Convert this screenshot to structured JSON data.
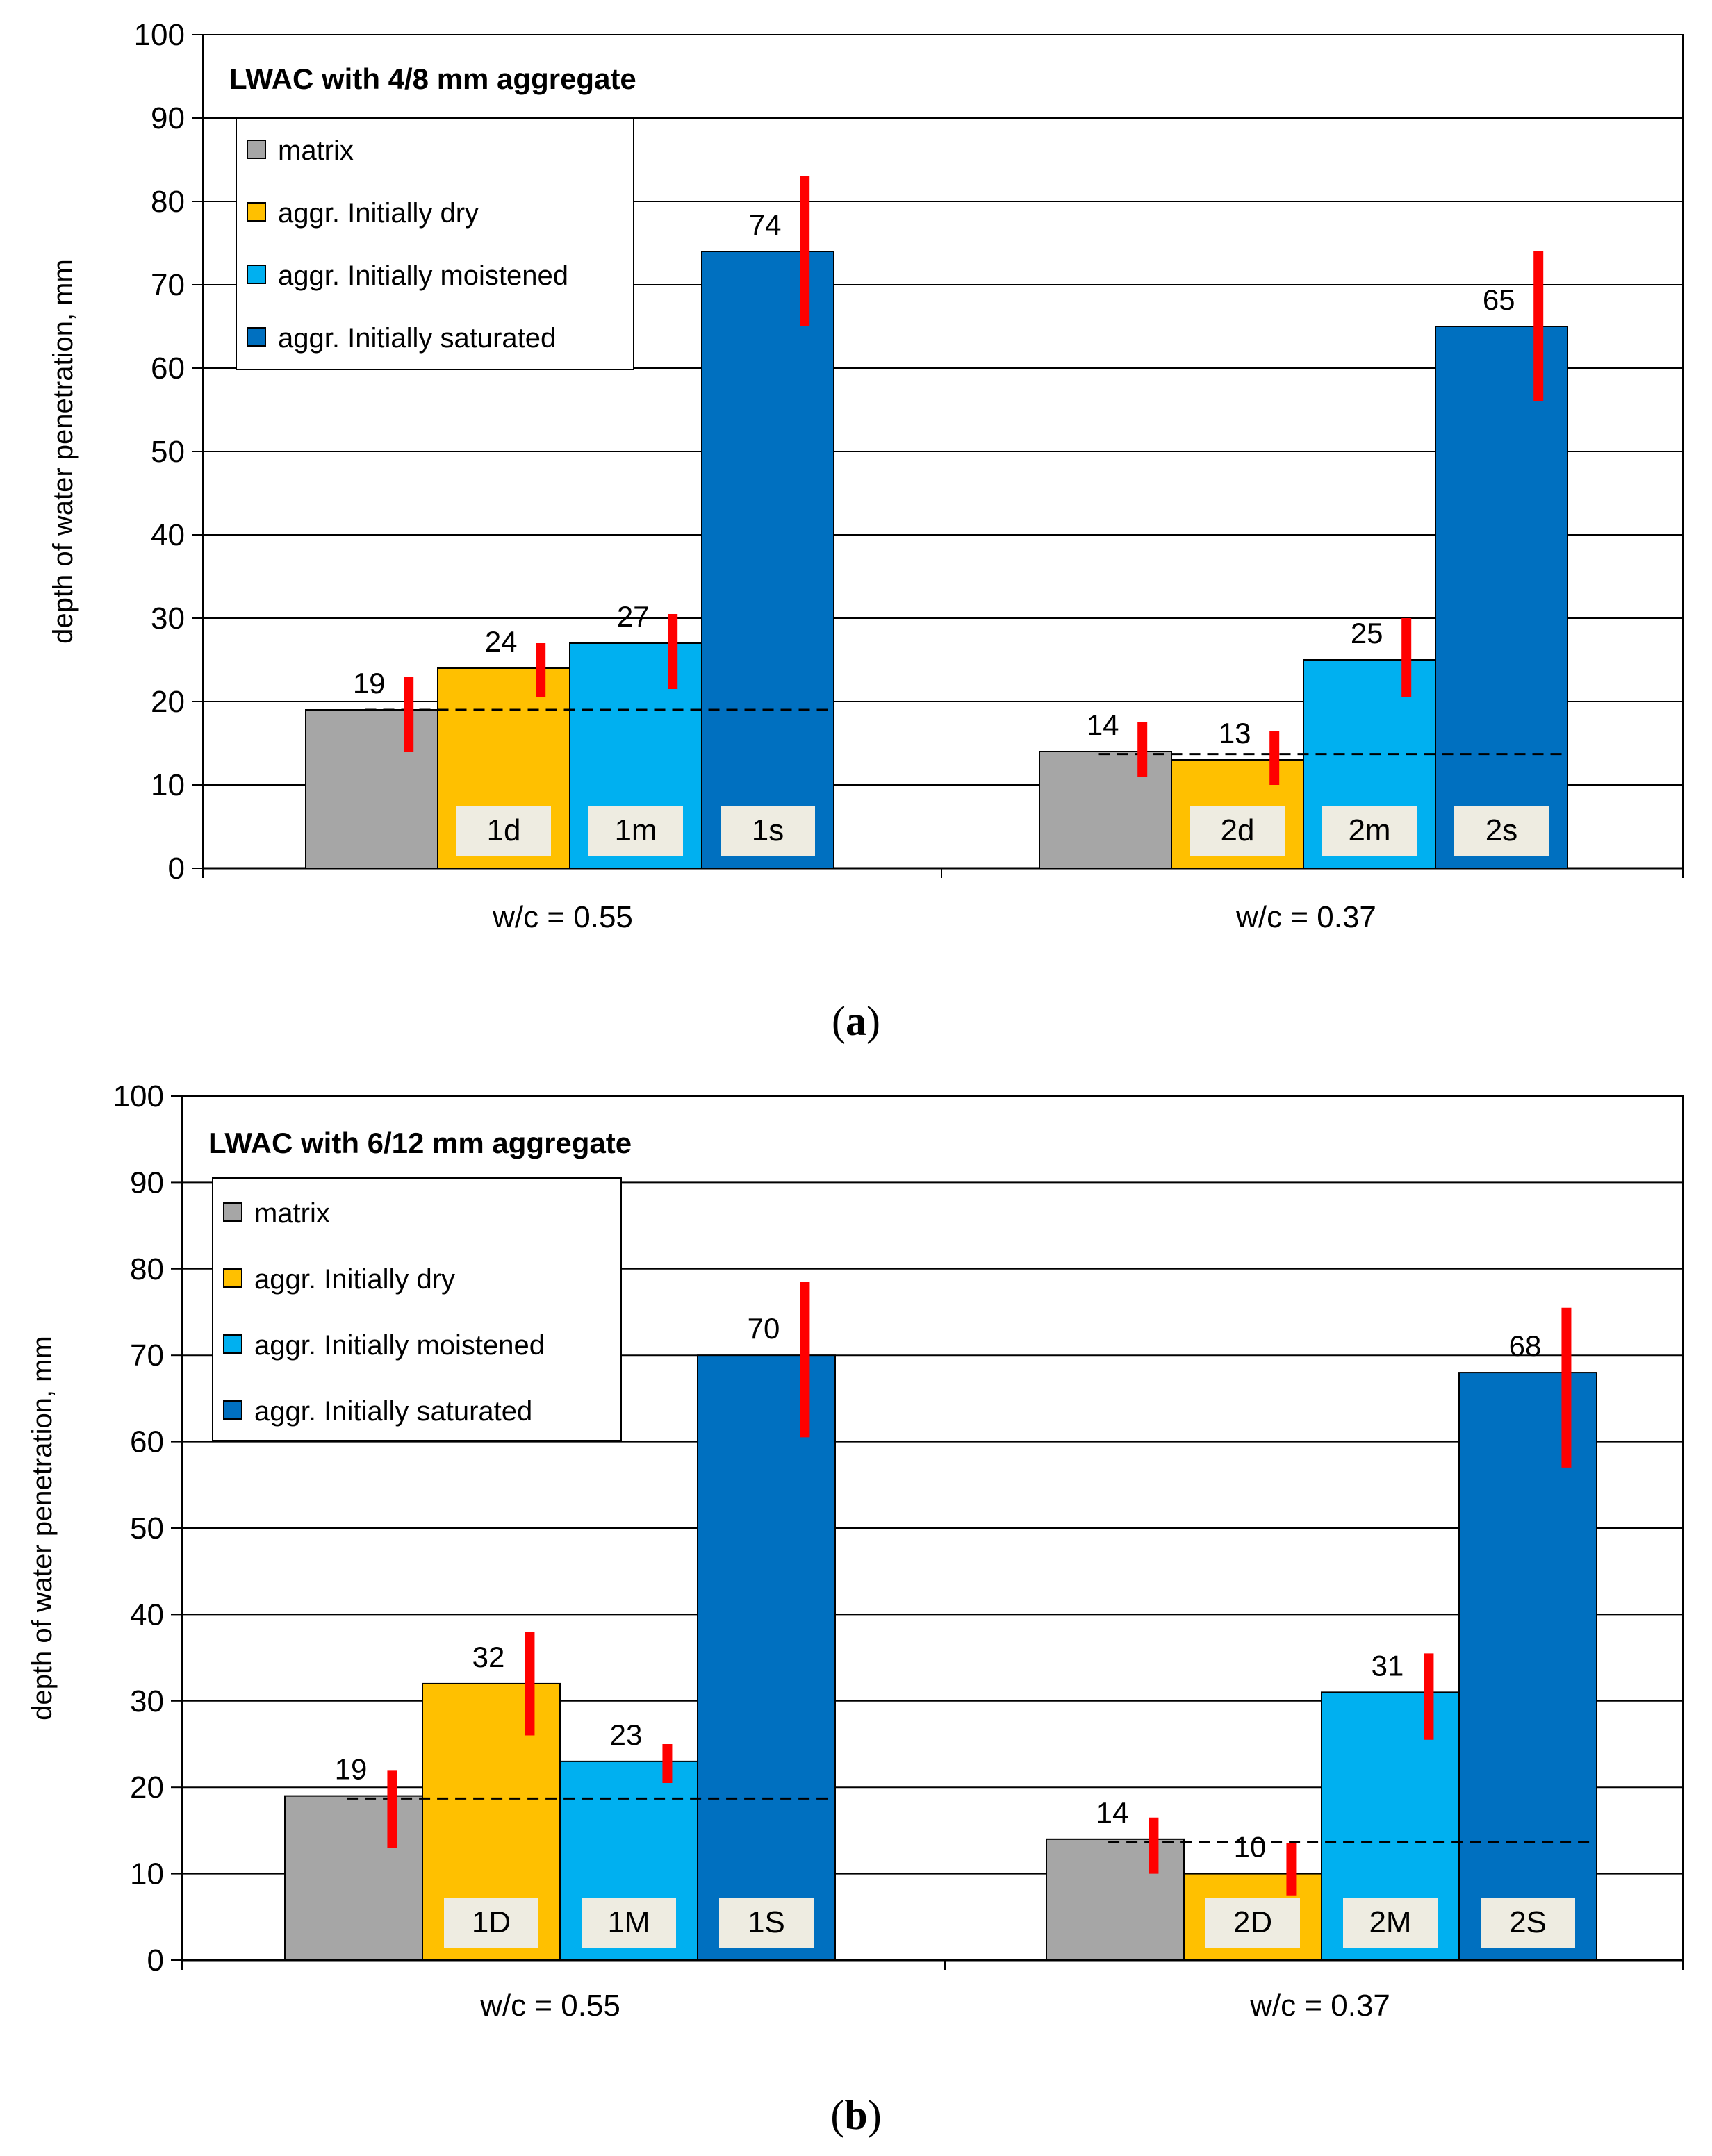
{
  "colors": {
    "matrix": "#A6A6A6",
    "dry": "#FFC000",
    "moistened": "#00B0F0",
    "saturated": "#0070C0",
    "error_bar": "#FF0000",
    "id_box": "#EEECE1"
  },
  "chart_data": [
    {
      "panel": "a",
      "panel_label": "a",
      "type": "bar",
      "title": "LWAC with 4/8 mm aggregate",
      "ylabel": "depth of water penetration,  mm",
      "ylim": [
        0,
        100
      ],
      "yticks": [
        "0",
        "10",
        "20",
        "30",
        "40",
        "50",
        "60",
        "70",
        "80",
        "90",
        "100"
      ],
      "grid": true,
      "legend_position": "top-left",
      "legend": [
        "matrix",
        "aggr. Initially dry",
        "aggr. Initially moistened",
        "aggr. Initially saturated"
      ],
      "categories": [
        "w/c = 0.55",
        "w/c = 0.37"
      ],
      "series": [
        {
          "name": "matrix",
          "key": "matrix",
          "values": [
            19,
            14
          ],
          "labels": [
            "19",
            "14"
          ],
          "ids": [
            "",
            ""
          ],
          "errors": [
            [
              14,
              23
            ],
            [
              11,
              17.5
            ]
          ]
        },
        {
          "name": "aggr. Initially dry",
          "key": "dry",
          "values": [
            24,
            13
          ],
          "labels": [
            "24",
            "13"
          ],
          "ids": [
            "1d",
            "2d"
          ],
          "errors": [
            [
              20.5,
              27
            ],
            [
              10,
              16.5
            ]
          ]
        },
        {
          "name": "aggr. Initially moistened",
          "key": "moistened",
          "values": [
            27,
            25
          ],
          "labels": [
            "27",
            "25"
          ],
          "ids": [
            "1m",
            "2m"
          ],
          "errors": [
            [
              21.5,
              30.5
            ],
            [
              20.5,
              30
            ]
          ]
        },
        {
          "name": "aggr. Initially saturated",
          "key": "saturated",
          "values": [
            74,
            65
          ],
          "labels": [
            "74",
            "65"
          ],
          "ids": [
            "1s",
            "2s"
          ],
          "errors": [
            [
              65,
              83
            ],
            [
              56,
              74
            ]
          ]
        }
      ],
      "reference_lines": [
        19,
        13.7
      ]
    },
    {
      "panel": "b",
      "panel_label": "b",
      "type": "bar",
      "title": "LWAC with 6/12 mm aggregate",
      "ylabel": "depth of water penetration,  mm",
      "ylim": [
        0,
        100
      ],
      "yticks": [
        "0",
        "10",
        "20",
        "30",
        "40",
        "50",
        "60",
        "70",
        "80",
        "90",
        "100"
      ],
      "grid": true,
      "legend_position": "top-left",
      "legend": [
        "matrix",
        "aggr. Initially dry",
        "aggr. Initially moistened",
        "aggr. Initially saturated"
      ],
      "categories": [
        "w/c = 0.55",
        "w/c = 0.37"
      ],
      "series": [
        {
          "name": "matrix",
          "key": "matrix",
          "values": [
            19,
            14
          ],
          "labels": [
            "19",
            "14"
          ],
          "ids": [
            "",
            ""
          ],
          "errors": [
            [
              13,
              22
            ],
            [
              10,
              16.5
            ]
          ]
        },
        {
          "name": "aggr. Initially dry",
          "key": "dry",
          "values": [
            32,
            10
          ],
          "labels": [
            "32",
            "10"
          ],
          "ids": [
            "1D",
            "2D"
          ],
          "errors": [
            [
              26,
              38
            ],
            [
              7.5,
              13.5
            ]
          ]
        },
        {
          "name": "aggr. Initially moistened",
          "key": "moistened",
          "values": [
            23,
            31
          ],
          "labels": [
            "23",
            "31"
          ],
          "ids": [
            "1M",
            "2M"
          ],
          "errors": [
            [
              20.5,
              25
            ],
            [
              25.5,
              35.5
            ]
          ]
        },
        {
          "name": "aggr. Initially saturated",
          "key": "saturated",
          "values": [
            70,
            68
          ],
          "labels": [
            "70",
            "68"
          ],
          "ids": [
            "1S",
            "2S"
          ],
          "errors": [
            [
              60.5,
              78.5
            ],
            [
              57,
              75.5
            ]
          ]
        }
      ],
      "reference_lines": [
        18.7,
        13.7
      ]
    }
  ]
}
